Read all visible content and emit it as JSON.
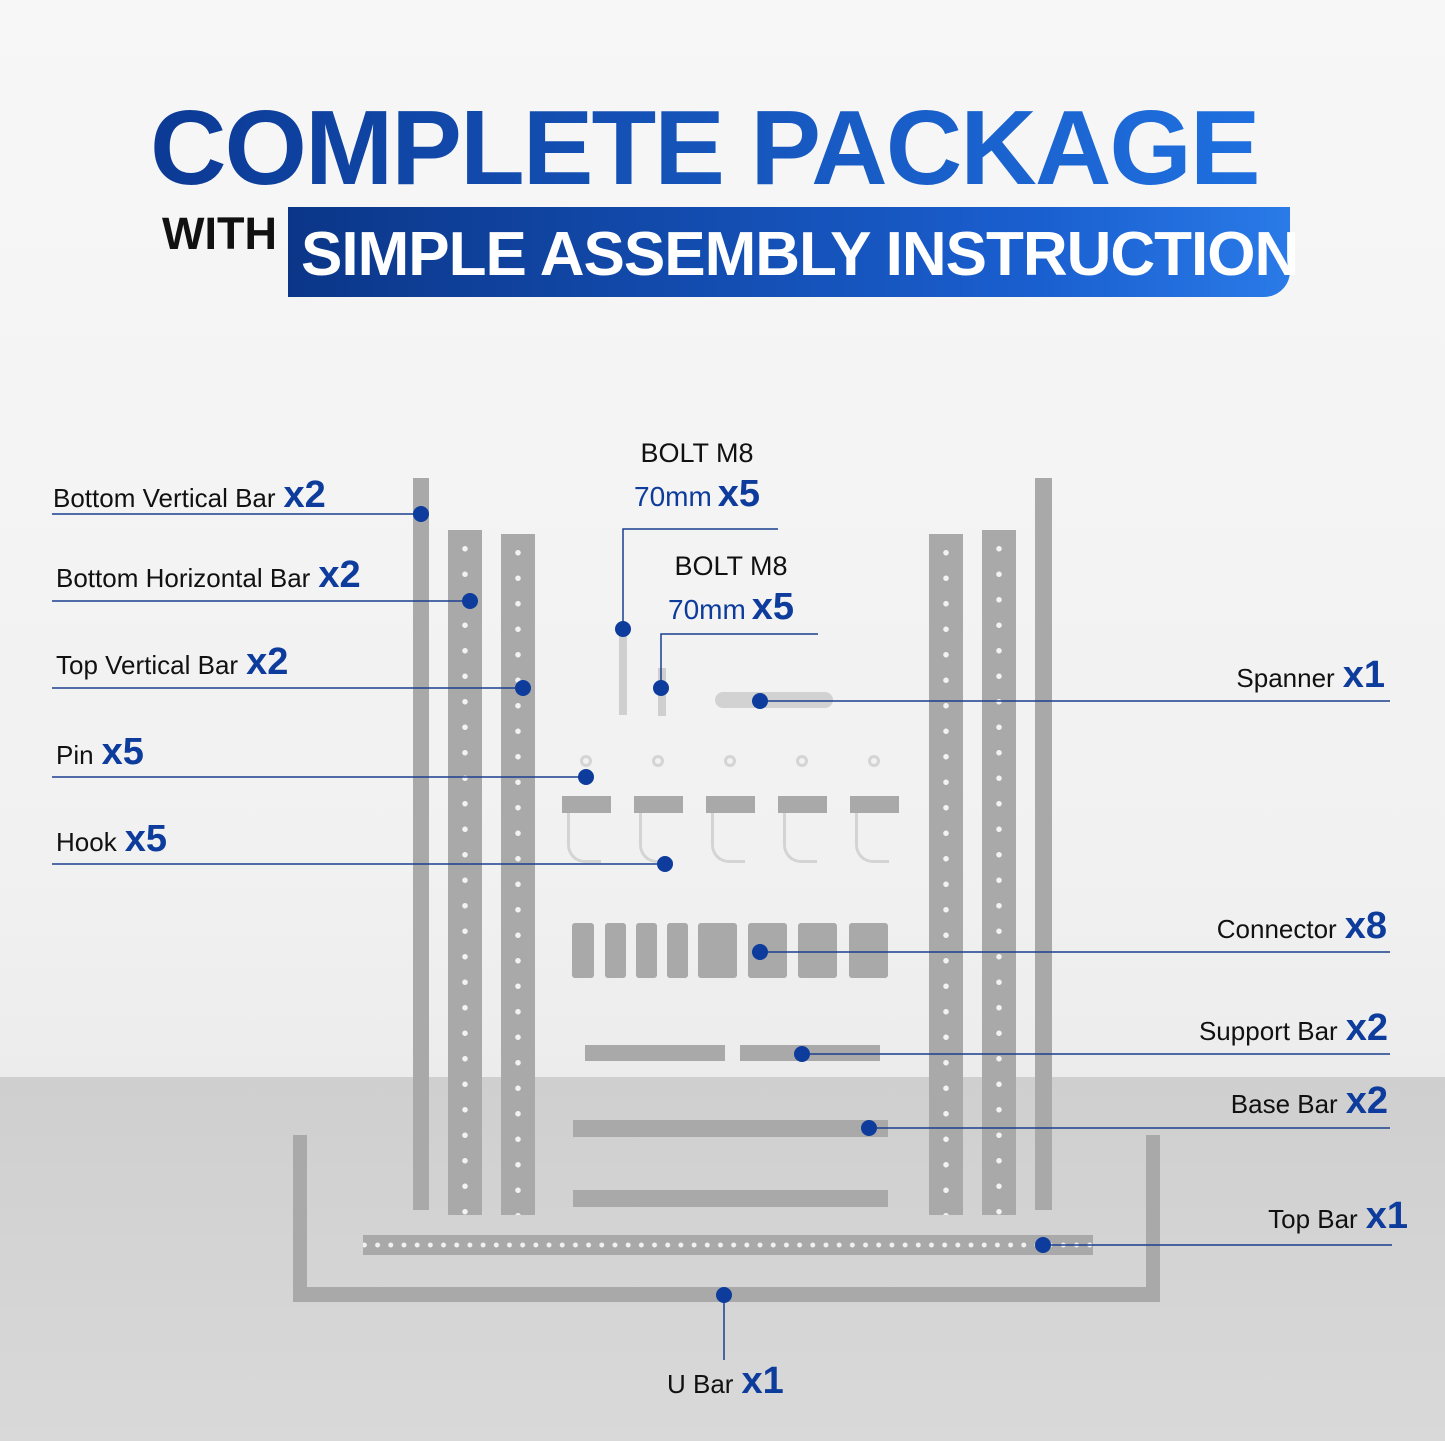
{
  "header": {
    "title": "COMPLETE PACKAGE",
    "with": "WITH",
    "banner": "SIMPLE ASSEMBLY INSTRUCTION"
  },
  "colors": {
    "title_blue": "#0c3a95",
    "accent_blue": "#0d3c9c",
    "part_gray": "#a9a9a9"
  },
  "parts": [
    {
      "name": "Bottom Vertical Bar",
      "qty": "x2"
    },
    {
      "name": "Bottom Horizontal Bar",
      "qty": "x2"
    },
    {
      "name": "Top Vertical Bar",
      "qty": "x2"
    },
    {
      "name": "Pin",
      "qty": "x5"
    },
    {
      "name": "Hook",
      "qty": "x5"
    },
    {
      "name": "Spanner",
      "qty": "x1"
    },
    {
      "name": "Connector",
      "qty": "x8"
    },
    {
      "name": "Support Bar",
      "qty": "x2"
    },
    {
      "name": "Base Bar",
      "qty": "x2"
    },
    {
      "name": "Top Bar",
      "qty": "x1"
    },
    {
      "name": "U Bar",
      "qty": "x1"
    }
  ],
  "bolts": [
    {
      "name": "BOLT M8",
      "size": "70mm",
      "qty": "x5"
    },
    {
      "name": "BOLT M8",
      "size": "70mm",
      "qty": "x5"
    }
  ]
}
